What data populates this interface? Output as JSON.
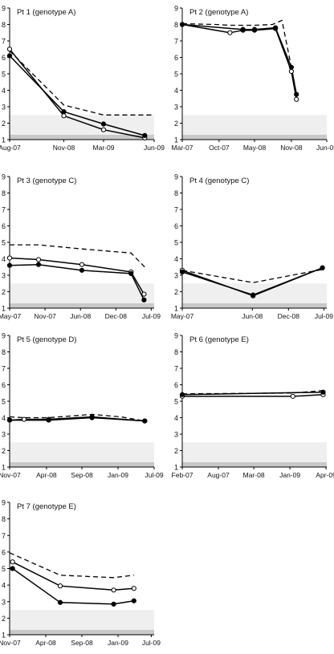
{
  "chart_data": [
    {
      "type": "line",
      "title": "Pt 1 (genotype A)",
      "ylim": [
        1,
        9
      ],
      "yticks": [
        1,
        2,
        3,
        4,
        5,
        6,
        7,
        8,
        9
      ],
      "xlim": [
        0,
        1
      ],
      "xticks": [
        {
          "x": 0.0,
          "label": "Aug-07"
        },
        {
          "x": 0.375,
          "label": "Nov-08"
        },
        {
          "x": 0.65,
          "label": "Mar-09"
        },
        {
          "x": 1.0,
          "label": "Jun-09"
        }
      ],
      "bands": [
        [
          1,
          1.3
        ],
        [
          1.3,
          2.5
        ]
      ],
      "series": [
        {
          "style": "dashed",
          "marker": "none",
          "x": [
            0.0,
            0.375,
            0.65,
            1.0
          ],
          "y": [
            6.4,
            3.1,
            2.5,
            2.5
          ]
        },
        {
          "style": "solid",
          "marker": "open",
          "x": [
            0.0,
            0.375,
            0.65,
            0.935
          ],
          "y": [
            6.5,
            2.45,
            1.6,
            1.1
          ]
        },
        {
          "style": "solid",
          "marker": "filled",
          "x": [
            0.0,
            0.375,
            0.65,
            0.935
          ],
          "y": [
            6.1,
            2.7,
            1.95,
            1.25
          ]
        }
      ]
    },
    {
      "type": "line",
      "title": "Pt 2 (genotype A)",
      "ylim": [
        1,
        9
      ],
      "yticks": [
        1,
        2,
        3,
        4,
        5,
        6,
        7,
        8,
        9
      ],
      "xlim": [
        0,
        1
      ],
      "xticks": [
        {
          "x": 0.0,
          "label": "Mar-07"
        },
        {
          "x": 0.255,
          "label": "Oct-07"
        },
        {
          "x": 0.5,
          "label": "May-08"
        },
        {
          "x": 0.755,
          "label": "Nov-08"
        },
        {
          "x": 1.0,
          "label": "Jun-09"
        }
      ],
      "bands": [
        [
          1,
          1.3
        ],
        [
          1.3,
          2.5
        ]
      ],
      "series": [
        {
          "style": "dashed",
          "marker": "none",
          "x": [
            0.0,
            0.23,
            0.33,
            0.5,
            0.625,
            0.69,
            0.755,
            0.79
          ],
          "y": [
            8.05,
            8.0,
            7.95,
            7.95,
            8.0,
            8.25,
            5.4,
            3.8
          ]
        },
        {
          "style": "solid",
          "marker": "open",
          "x": [
            0.0,
            0.33,
            0.42,
            0.5,
            0.645,
            0.755,
            0.79
          ],
          "y": [
            8.0,
            7.5,
            7.65,
            7.65,
            7.75,
            5.15,
            3.45
          ]
        },
        {
          "style": "solid",
          "marker": "filled",
          "x": [
            0.0,
            0.42,
            0.5,
            0.645,
            0.755,
            0.79
          ],
          "y": [
            8.0,
            7.7,
            7.7,
            7.8,
            5.4,
            3.75
          ]
        }
      ]
    },
    {
      "type": "line",
      "title": "Pt 3 (genotype C)",
      "ylim": [
        1,
        9
      ],
      "yticks": [
        1,
        2,
        3,
        4,
        5,
        6,
        7,
        8,
        9
      ],
      "xlim": [
        0,
        1
      ],
      "xticks": [
        {
          "x": 0.0,
          "label": "May-07"
        },
        {
          "x": 0.245,
          "label": "Nov-07"
        },
        {
          "x": 0.49,
          "label": "Jun-08"
        },
        {
          "x": 0.735,
          "label": "Dec-08"
        },
        {
          "x": 0.98,
          "label": "Jul-09"
        }
      ],
      "bands": [
        [
          1,
          1.3
        ],
        [
          1.3,
          2.5
        ]
      ],
      "series": [
        {
          "style": "dashed",
          "marker": "none",
          "x": [
            0.0,
            0.2,
            0.5,
            0.84,
            0.935
          ],
          "y": [
            4.85,
            4.85,
            4.6,
            4.35,
            3.5
          ]
        },
        {
          "style": "solid",
          "marker": "open",
          "x": [
            0.0,
            0.2,
            0.5,
            0.84,
            0.93
          ],
          "y": [
            4.05,
            3.95,
            3.65,
            3.2,
            1.85
          ]
        },
        {
          "style": "solid",
          "marker": "filled",
          "x": [
            0.0,
            0.2,
            0.5,
            0.84,
            0.93
          ],
          "y": [
            3.6,
            3.65,
            3.3,
            3.1,
            1.5
          ]
        }
      ]
    },
    {
      "type": "line",
      "title": "Pt 4 (genotype C)",
      "ylim": [
        1,
        9
      ],
      "yticks": [
        1,
        2,
        3,
        4,
        5,
        6,
        7,
        8,
        9
      ],
      "xlim": [
        0,
        1
      ],
      "xticks": [
        {
          "x": 0.0,
          "label": "May-07"
        },
        {
          "x": 0.485,
          "label": "Jun-08"
        },
        {
          "x": 0.735,
          "label": "Dec-08"
        },
        {
          "x": 0.98,
          "label": "Jul-09"
        }
      ],
      "bands": [
        [
          1,
          1.3
        ],
        [
          1.3,
          2.5
        ]
      ],
      "series": [
        {
          "style": "dashed",
          "marker": "none",
          "x": [
            0.0,
            0.49,
            0.97
          ],
          "y": [
            3.3,
            2.55,
            3.35
          ]
        },
        {
          "style": "solid",
          "marker": "open",
          "x": [
            0.0,
            0.49,
            0.97
          ],
          "y": [
            3.3,
            1.75,
            3.45
          ]
        },
        {
          "style": "solid",
          "marker": "filled",
          "x": [
            0.0,
            0.49,
            0.97
          ],
          "y": [
            3.2,
            1.8,
            3.45
          ]
        }
      ]
    },
    {
      "type": "line",
      "title": "Pt 5 (genotype D)",
      "ylim": [
        1,
        9
      ],
      "yticks": [
        1,
        2,
        3,
        4,
        5,
        6,
        7,
        8,
        9
      ],
      "xlim": [
        0,
        1
      ],
      "xticks": [
        {
          "x": 0.0,
          "label": "Nov-07"
        },
        {
          "x": 0.255,
          "label": "Apr-08"
        },
        {
          "x": 0.5,
          "label": "Sep-08"
        },
        {
          "x": 0.75,
          "label": "Jan-09"
        },
        {
          "x": 1.0,
          "label": "Jul-09"
        }
      ],
      "bands": [
        [
          1,
          1.3
        ],
        [
          1.3,
          2.5
        ]
      ],
      "series": [
        {
          "style": "dashed",
          "marker": "none",
          "x": [
            0.0,
            0.1,
            0.27,
            0.57,
            0.77,
            0.935
          ],
          "y": [
            4.05,
            4.0,
            4.0,
            4.2,
            4.05,
            3.8
          ]
        },
        {
          "style": "solid",
          "marker": "open",
          "x": [
            0.0,
            0.1,
            0.27,
            0.57,
            0.935
          ],
          "y": [
            3.85,
            3.9,
            3.9,
            4.05,
            3.8
          ]
        },
        {
          "style": "solid",
          "marker": "filled",
          "x": [
            0.0,
            0.27,
            0.57,
            0.935
          ],
          "y": [
            3.85,
            3.85,
            4.0,
            3.8
          ]
        }
      ]
    },
    {
      "type": "line",
      "title": "Pt 6 (genotype E)",
      "ylim": [
        1,
        9
      ],
      "yticks": [
        1,
        2,
        3,
        4,
        5,
        6,
        7,
        8,
        9
      ],
      "xlim": [
        0,
        1
      ],
      "xticks": [
        {
          "x": 0.0,
          "label": "Feb-07"
        },
        {
          "x": 0.25,
          "label": "Aug-07"
        },
        {
          "x": 0.495,
          "label": "Mar-08"
        },
        {
          "x": 0.745,
          "label": "Jan-09"
        },
        {
          "x": 0.995,
          "label": "Apr-09"
        }
      ],
      "bands": [
        [
          1,
          1.3
        ],
        [
          1.3,
          2.5
        ]
      ],
      "series": [
        {
          "style": "dashed",
          "marker": "none",
          "x": [
            0.0,
            0.765,
            0.975
          ],
          "y": [
            5.45,
            5.5,
            5.65
          ]
        },
        {
          "style": "solid",
          "marker": "open",
          "x": [
            0.0,
            0.765,
            0.975
          ],
          "y": [
            5.3,
            5.3,
            5.4
          ]
        },
        {
          "style": "solid",
          "marker": "filled",
          "x": [
            0.0,
            0.975
          ],
          "y": [
            5.4,
            5.55
          ]
        }
      ]
    },
    {
      "type": "line",
      "title": "Pt 7 (genotype E)",
      "ylim": [
        1,
        9
      ],
      "yticks": [
        1,
        2,
        3,
        4,
        5,
        6,
        7,
        8,
        9
      ],
      "xlim": [
        0,
        1
      ],
      "xticks": [
        {
          "x": 0.0,
          "label": "Nov-07"
        },
        {
          "x": 0.25,
          "label": "Apr-08"
        },
        {
          "x": 0.5,
          "label": "Sep-08"
        },
        {
          "x": 0.75,
          "label": "Jan-09"
        },
        {
          "x": 0.98,
          "label": "Jul-09"
        }
      ],
      "bands": [
        [
          1,
          1.3
        ],
        [
          1.3,
          2.5
        ]
      ],
      "series": [
        {
          "style": "dashed",
          "marker": "none",
          "x": [
            0.0,
            0.35,
            0.72,
            0.86
          ],
          "y": [
            5.95,
            4.6,
            4.45,
            4.6
          ]
        },
        {
          "style": "solid",
          "marker": "open",
          "x": [
            0.02,
            0.35,
            0.72,
            0.86
          ],
          "y": [
            5.4,
            3.95,
            3.7,
            3.8
          ]
        },
        {
          "style": "solid",
          "marker": "filled",
          "x": [
            0.02,
            0.35,
            0.72,
            0.86
          ],
          "y": [
            5.0,
            2.95,
            2.85,
            3.05
          ]
        }
      ]
    }
  ]
}
